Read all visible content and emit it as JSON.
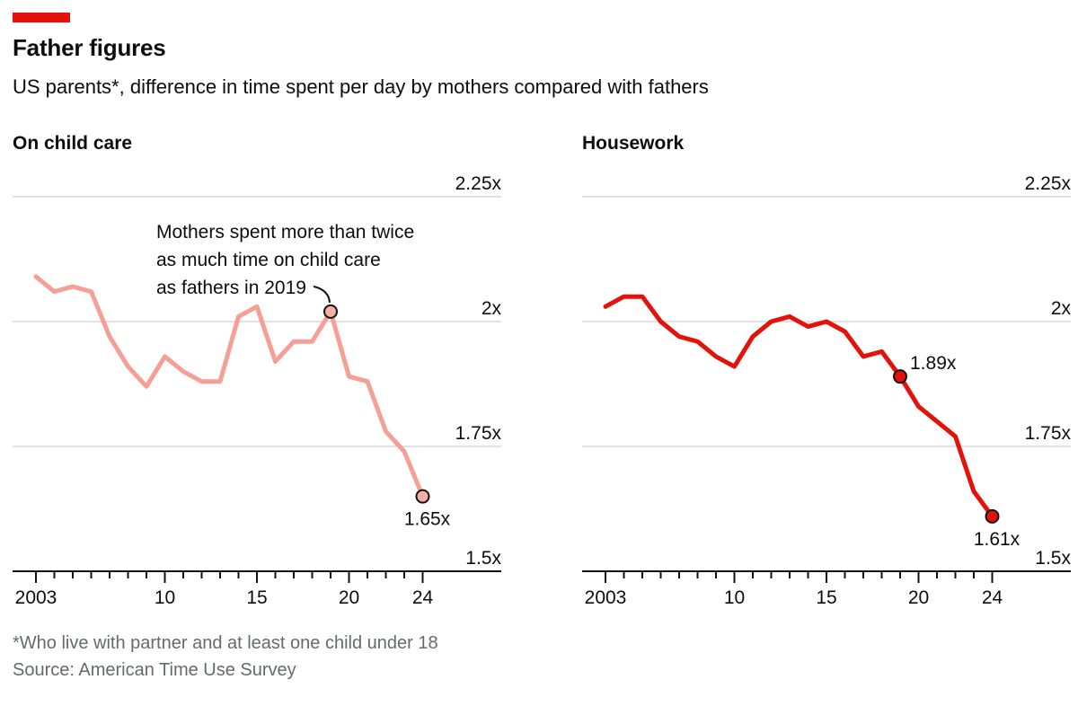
{
  "colors": {
    "accent": "#e3120b",
    "text": "#0d0d0d",
    "footnote_text": "#66696d",
    "gridline": "#d8d8d8",
    "axis": "#121212"
  },
  "header": {
    "title": "Father figures",
    "subtitle": "US parents*, difference in time spent per day by mothers compared with fathers"
  },
  "axis": {
    "years": [
      2003,
      2024
    ],
    "major_ticks": [
      {
        "year": 2003,
        "label": "2003"
      },
      {
        "year": 2010,
        "label": "10"
      },
      {
        "year": 2015,
        "label": "15"
      },
      {
        "year": 2020,
        "label": "20"
      },
      {
        "year": 2024,
        "label": "24"
      }
    ],
    "gridlines": [
      {
        "value": 2.25,
        "label": "2.25x"
      },
      {
        "value": 2.0,
        "label": "2x"
      },
      {
        "value": 1.75,
        "label": "1.75x"
      },
      {
        "value": 1.5,
        "label": "1.5x"
      }
    ],
    "ylim": [
      1.5,
      2.25
    ],
    "grid": "horizontal-only",
    "legend": "none"
  },
  "chart_data": [
    {
      "type": "line",
      "title": "On child care",
      "series_name": "child-care",
      "x": [
        2003,
        2004,
        2005,
        2006,
        2007,
        2008,
        2009,
        2010,
        2011,
        2012,
        2013,
        2014,
        2015,
        2016,
        2017,
        2018,
        2019,
        2020,
        2021,
        2022,
        2023,
        2024
      ],
      "values": [
        2.09,
        2.06,
        2.07,
        2.06,
        1.97,
        1.91,
        1.87,
        1.93,
        1.9,
        1.88,
        1.88,
        2.01,
        2.03,
        1.92,
        1.96,
        1.96,
        2.02,
        1.89,
        1.88,
        1.78,
        1.74,
        1.65
      ],
      "line_color": "#f5a094",
      "marker_fill": "#f4b0a4",
      "markers": [
        {
          "year": 2019,
          "value": 2.02,
          "label": "",
          "label_pos": "none"
        },
        {
          "year": 2024,
          "value": 1.65,
          "label": "1.65x",
          "label_pos": "below"
        }
      ],
      "annotation": {
        "lines": [
          "Mothers spent more than twice",
          "as much time on child care",
          "as fathers in 2019"
        ],
        "target_year": 2019
      }
    },
    {
      "type": "line",
      "title": "Housework",
      "series_name": "housework",
      "x": [
        2003,
        2004,
        2005,
        2006,
        2007,
        2008,
        2009,
        2010,
        2011,
        2012,
        2013,
        2014,
        2015,
        2016,
        2017,
        2018,
        2019,
        2020,
        2021,
        2022,
        2023,
        2024
      ],
      "values": [
        2.03,
        2.05,
        2.05,
        2.0,
        1.97,
        1.96,
        1.93,
        1.91,
        1.97,
        2.0,
        2.01,
        1.99,
        2.0,
        1.98,
        1.93,
        1.94,
        1.89,
        1.83,
        1.8,
        1.77,
        1.66,
        1.61
      ],
      "line_color": "#e3120b",
      "marker_fill": "#e3120b",
      "markers": [
        {
          "year": 2019,
          "value": 1.89,
          "label": "1.89x",
          "label_pos": "right"
        },
        {
          "year": 2024,
          "value": 1.61,
          "label": "1.61x",
          "label_pos": "below"
        }
      ],
      "annotation": null
    }
  ],
  "footnotes": [
    "*Who live with partner and at least one child under 18",
    "Source: American Time Use Survey"
  ]
}
